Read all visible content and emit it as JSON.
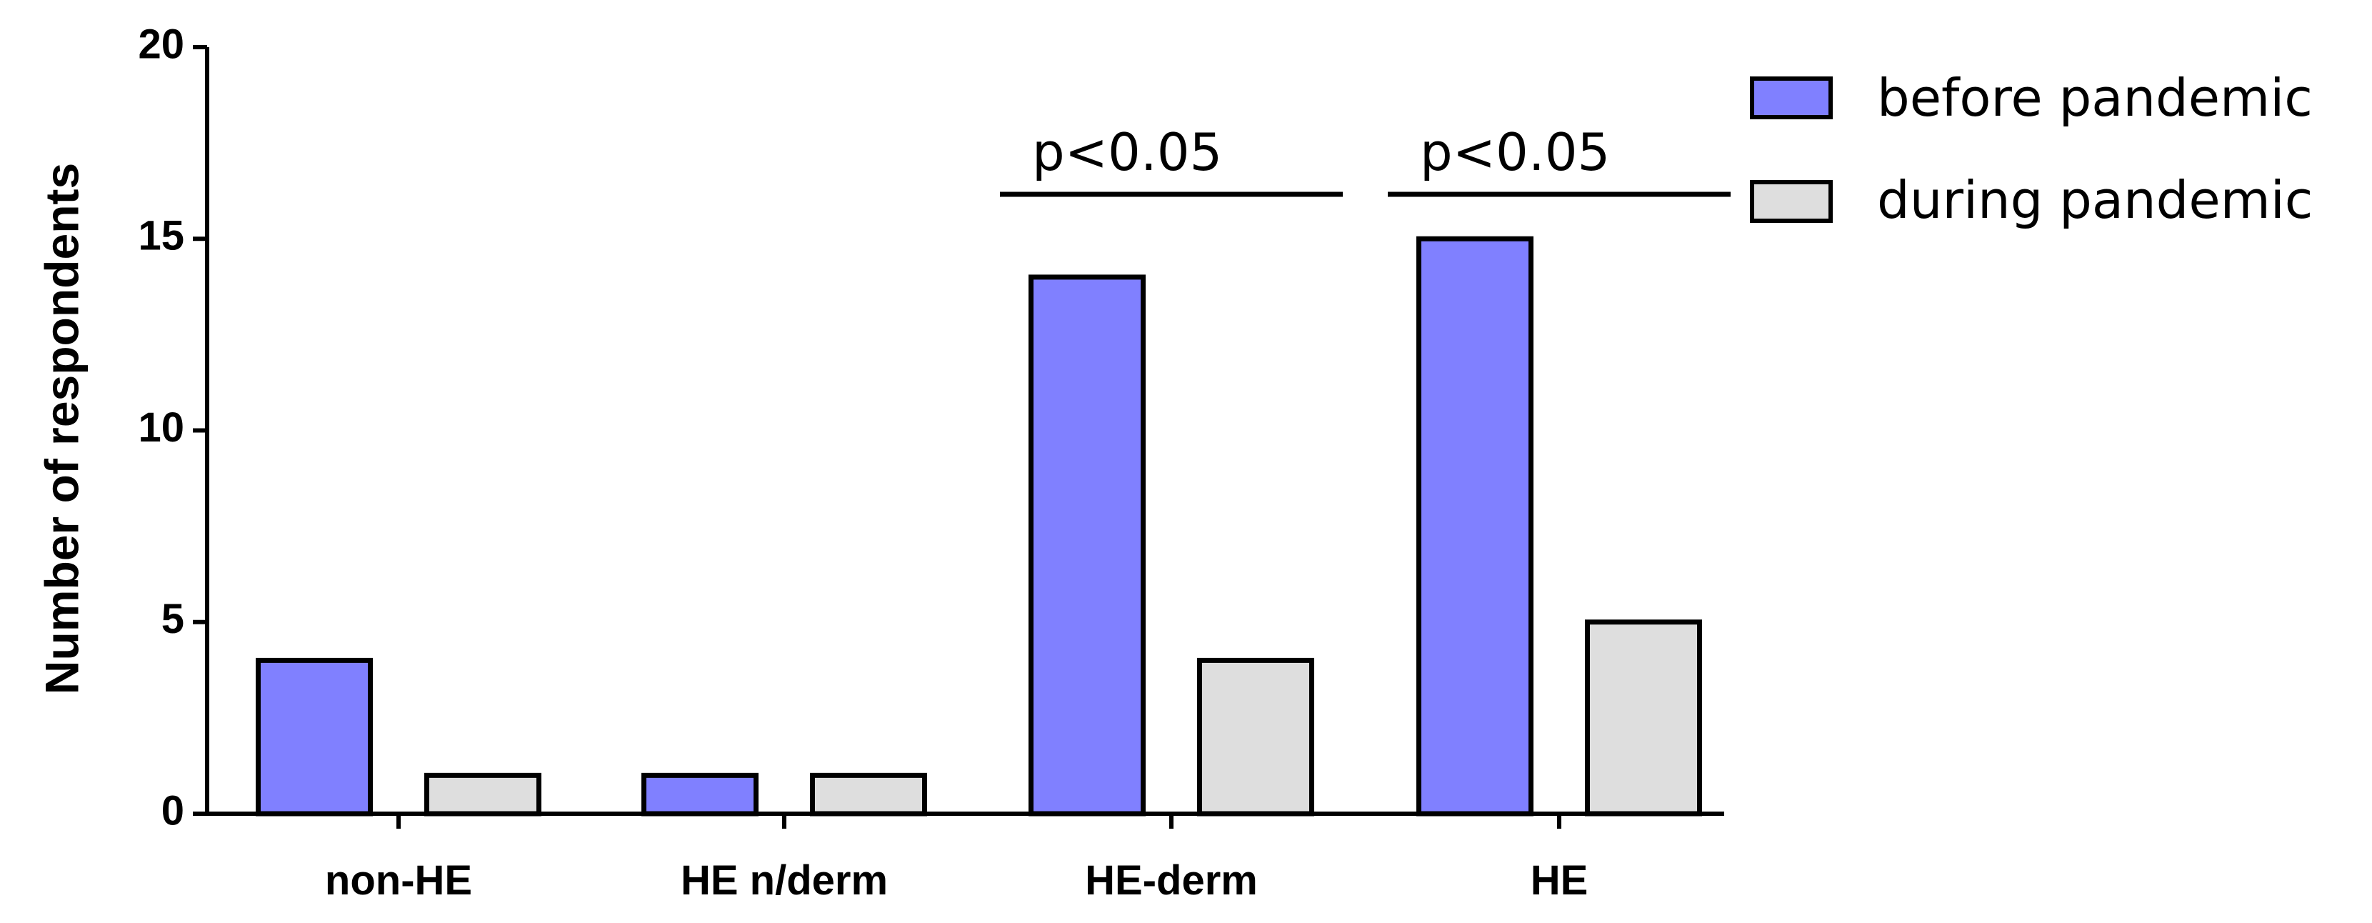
{
  "chart_data": {
    "type": "bar",
    "categories": [
      "non-HE",
      "HE n/derm",
      "HE-derm",
      "HE"
    ],
    "series": [
      {
        "name": "before pandemic",
        "values": [
          4,
          1,
          14,
          15
        ],
        "color": "#8080ff"
      },
      {
        "name": "during pandemic",
        "values": [
          1,
          1,
          4,
          5
        ],
        "color": "#dedede"
      }
    ],
    "ylabel": "Number of respondents",
    "ylim": [
      0,
      20
    ],
    "yticks": [
      0,
      5,
      10,
      15,
      20
    ],
    "grid": false,
    "legend_position": "top-right",
    "annotations": [
      {
        "text": "p<0.05",
        "category": "HE-derm"
      },
      {
        "text": "p<0.05",
        "category": "HE"
      }
    ]
  }
}
